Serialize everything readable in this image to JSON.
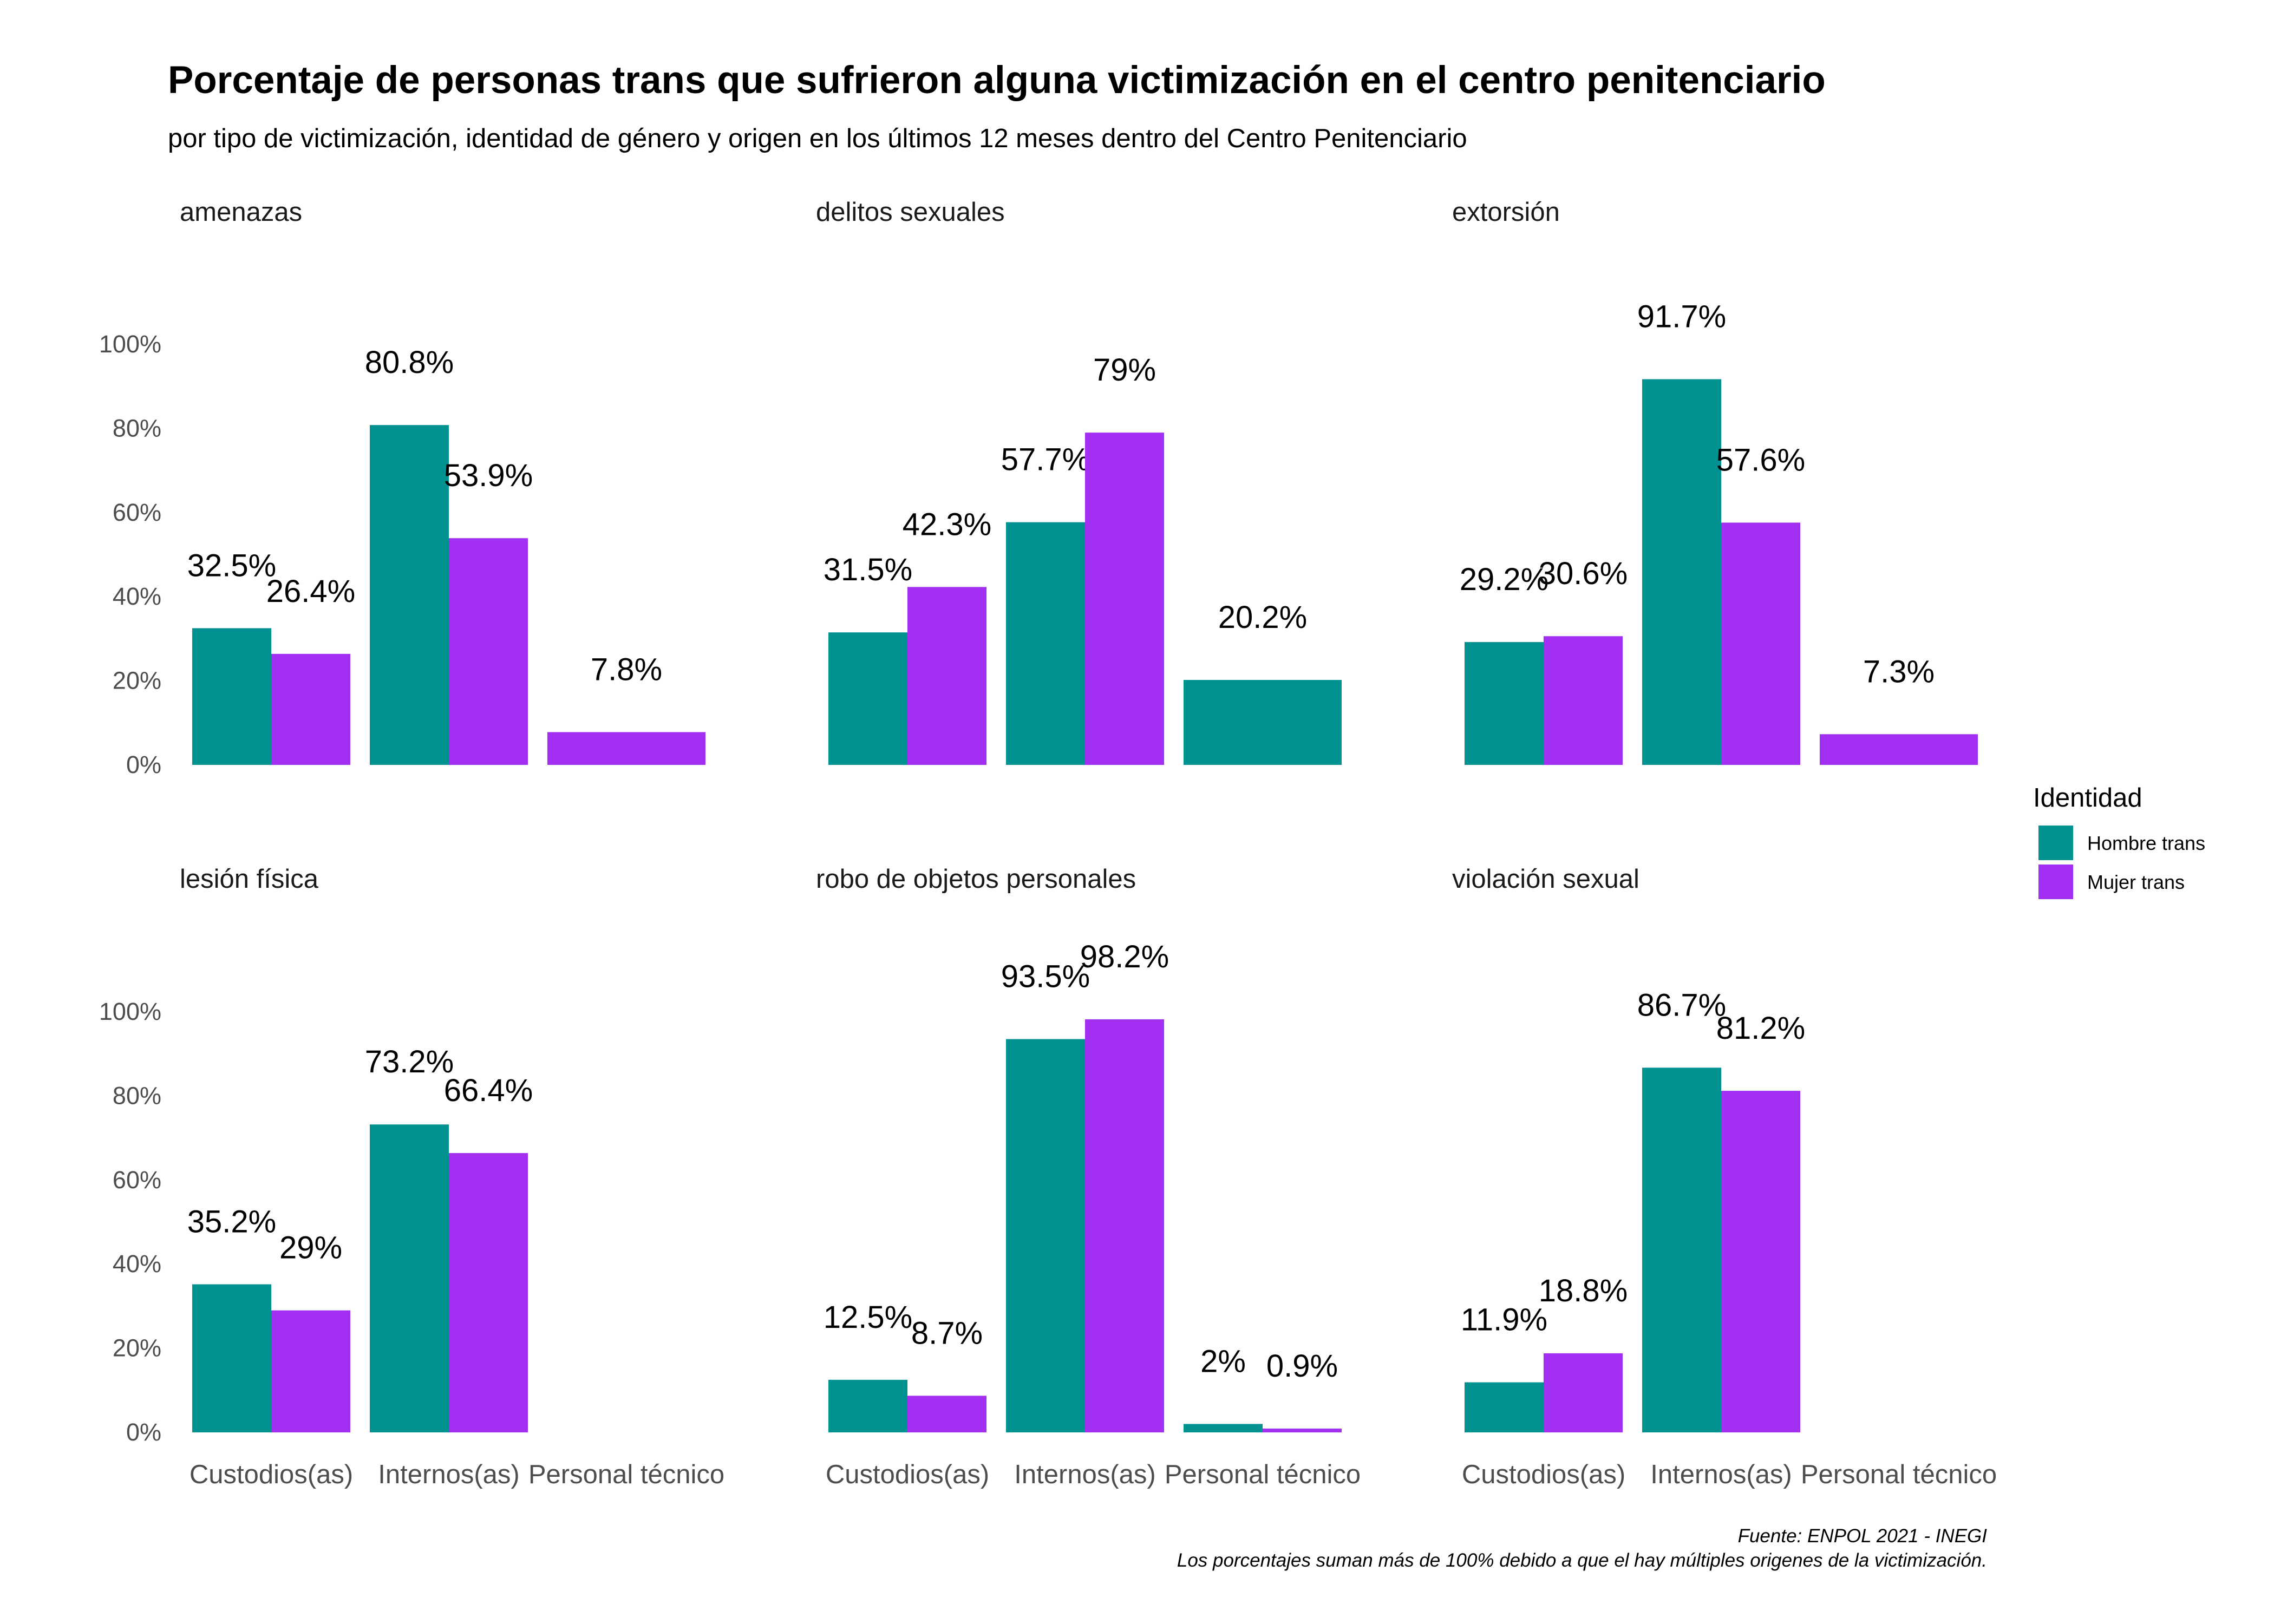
{
  "title": "Porcentaje de personas trans que sufrieron alguna victimización en el centro penitenciario",
  "subtitle": "por tipo de victimización, identidad de género y origen en los últimos 12 meses dentro del Centro Penitenciario",
  "caption": {
    "line1": "Fuente: ENPOL 2021 - INEGI",
    "line2": "Los porcentajes suman más de 100% debido a que el hay múltiples origenes de la victimización."
  },
  "legend": {
    "title": "Identidad",
    "items": [
      {
        "label": "Hombre trans",
        "color": "#009191"
      },
      {
        "label": "Mujer trans",
        "color": "#A32FF3"
      }
    ]
  },
  "chart_data": {
    "type": "bar",
    "facets": [
      "amenazas",
      "delitos sexuales",
      "extorsión",
      "lesión física",
      "robo de objetos personales",
      "violación sexual"
    ],
    "categories": [
      "Custodios(as)",
      "Internos(as)",
      "Personal técnico"
    ],
    "yticks": [
      "0%",
      "20%",
      "40%",
      "60%",
      "80%",
      "100%"
    ],
    "ylim": [
      0,
      100
    ],
    "panels": [
      {
        "facet": "amenazas",
        "bars": [
          {
            "category": "Custodios(as)",
            "series": "Hombre trans",
            "value": 32.5,
            "label": "32.5%"
          },
          {
            "category": "Custodios(as)",
            "series": "Mujer trans",
            "value": 26.4,
            "label": "26.4%"
          },
          {
            "category": "Internos(as)",
            "series": "Hombre trans",
            "value": 80.8,
            "label": "80.8%"
          },
          {
            "category": "Internos(as)",
            "series": "Mujer trans",
            "value": 53.9,
            "label": "53.9%"
          },
          {
            "category": "Personal técnico",
            "series": "Mujer trans",
            "value": 7.8,
            "label": "7.8%"
          }
        ]
      },
      {
        "facet": "delitos sexuales",
        "bars": [
          {
            "category": "Custodios(as)",
            "series": "Hombre trans",
            "value": 31.5,
            "label": "31.5%"
          },
          {
            "category": "Custodios(as)",
            "series": "Mujer trans",
            "value": 42.3,
            "label": "42.3%"
          },
          {
            "category": "Internos(as)",
            "series": "Hombre trans",
            "value": 57.7,
            "label": "57.7%"
          },
          {
            "category": "Internos(as)",
            "series": "Mujer trans",
            "value": 79,
            "label": "79%"
          },
          {
            "category": "Personal técnico",
            "series": "Hombre trans",
            "value": 20.2,
            "label": "20.2%"
          }
        ]
      },
      {
        "facet": "extorsión",
        "bars": [
          {
            "category": "Custodios(as)",
            "series": "Hombre trans",
            "value": 29.2,
            "label": "29.2%"
          },
          {
            "category": "Custodios(as)",
            "series": "Mujer trans",
            "value": 30.6,
            "label": "30.6%"
          },
          {
            "category": "Internos(as)",
            "series": "Hombre trans",
            "value": 91.7,
            "label": "91.7%"
          },
          {
            "category": "Internos(as)",
            "series": "Mujer trans",
            "value": 57.6,
            "label": "57.6%"
          },
          {
            "category": "Personal técnico",
            "series": "Mujer trans",
            "value": 7.3,
            "label": "7.3%"
          }
        ]
      },
      {
        "facet": "lesión física",
        "bars": [
          {
            "category": "Custodios(as)",
            "series": "Hombre trans",
            "value": 35.2,
            "label": "35.2%"
          },
          {
            "category": "Custodios(as)",
            "series": "Mujer trans",
            "value": 29,
            "label": "29%"
          },
          {
            "category": "Internos(as)",
            "series": "Hombre trans",
            "value": 73.2,
            "label": "73.2%"
          },
          {
            "category": "Internos(as)",
            "series": "Mujer trans",
            "value": 66.4,
            "label": "66.4%"
          }
        ]
      },
      {
        "facet": "robo de objetos personales",
        "bars": [
          {
            "category": "Custodios(as)",
            "series": "Hombre trans",
            "value": 12.5,
            "label": "12.5%"
          },
          {
            "category": "Custodios(as)",
            "series": "Mujer trans",
            "value": 8.7,
            "label": "8.7%"
          },
          {
            "category": "Internos(as)",
            "series": "Hombre trans",
            "value": 93.5,
            "label": "93.5%"
          },
          {
            "category": "Internos(as)",
            "series": "Mujer trans",
            "value": 98.2,
            "label": "98.2%"
          },
          {
            "category": "Personal técnico",
            "series": "Hombre trans",
            "value": 2,
            "label": "2%"
          },
          {
            "category": "Personal técnico",
            "series": "Mujer trans",
            "value": 0.9,
            "label": "0.9%"
          }
        ]
      },
      {
        "facet": "violación sexual",
        "bars": [
          {
            "category": "Custodios(as)",
            "series": "Hombre trans",
            "value": 11.9,
            "label": "11.9%"
          },
          {
            "category": "Custodios(as)",
            "series": "Mujer trans",
            "value": 18.8,
            "label": "18.8%"
          },
          {
            "category": "Internos(as)",
            "series": "Hombre trans",
            "value": 86.7,
            "label": "86.7%"
          },
          {
            "category": "Internos(as)",
            "series": "Mujer trans",
            "value": 81.2,
            "label": "81.2%"
          }
        ]
      }
    ]
  }
}
